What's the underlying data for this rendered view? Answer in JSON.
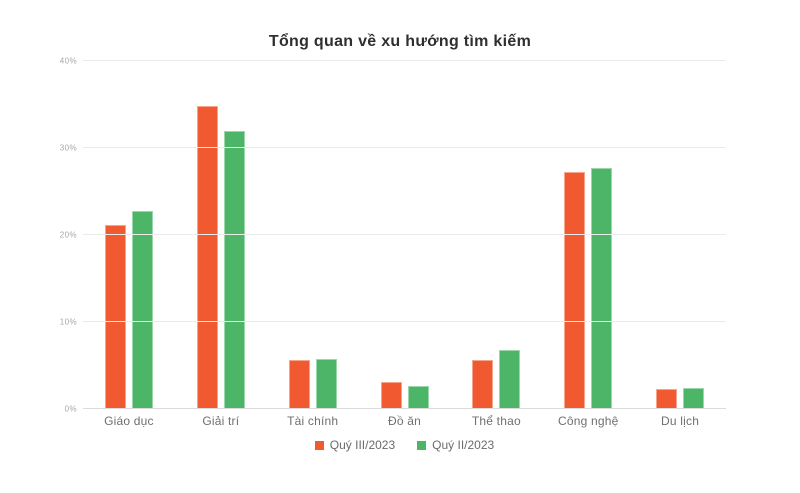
{
  "page": {
    "background_color": "#ffffff"
  },
  "chart_data": {
    "type": "bar",
    "title": "Tổng quan về xu hướng tìm kiếm",
    "categories": [
      "Giáo dục",
      "Giải trí",
      "Tài chính",
      "Đồ ăn",
      "Thể thao",
      "Công nghệ",
      "Du lịch"
    ],
    "series": [
      {
        "name": "Quý III/2023",
        "color": "#F15A31",
        "values": [
          21.2,
          34.8,
          5.6,
          3.1,
          5.6,
          27.3,
          2.3
        ]
      },
      {
        "name": "Quý II/2023",
        "color": "#4CB567",
        "values": [
          22.8,
          32.0,
          5.8,
          2.7,
          6.8,
          27.7,
          2.4
        ]
      }
    ],
    "xlabel": "",
    "ylabel": "",
    "ylim": [
      0,
      40
    ],
    "ytick_labels": [
      "0%",
      "10%",
      "20%",
      "30%",
      "40%"
    ],
    "grid": true,
    "legend_position": "bottom",
    "colors": {
      "title_text": "#2f2f2f",
      "axis_tick_text": "#a6a6a6",
      "category_text": "#6f6f6f",
      "legend_text": "#6b6b6b",
      "gridline": "#ebebeb",
      "baseline": "#dcdcdc"
    }
  }
}
